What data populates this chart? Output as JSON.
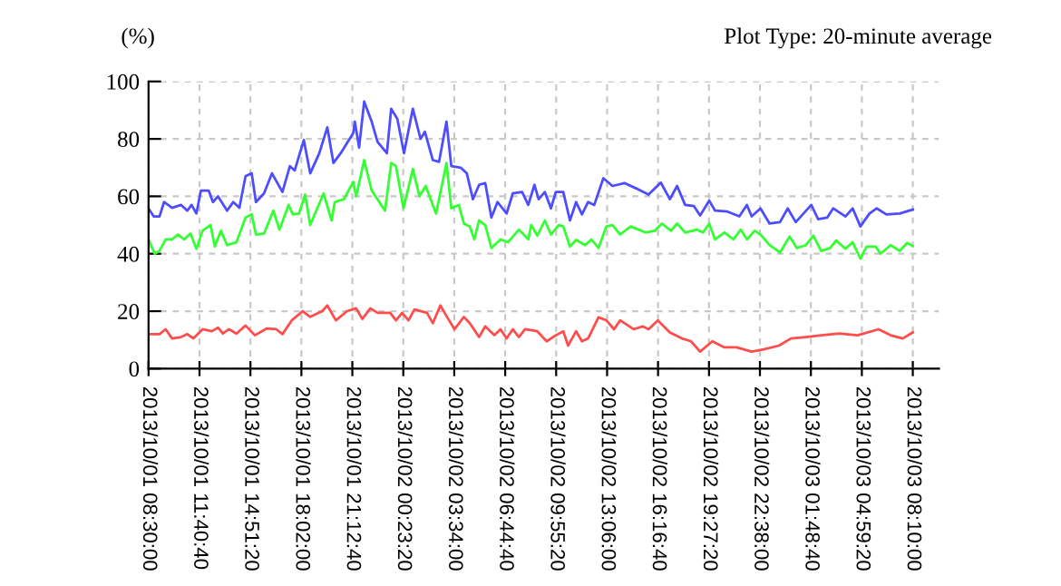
{
  "chart_data": {
    "type": "line",
    "title": "Plot Type: 20-minute average",
    "ylabel": "(%)",
    "xlim": [
      "2013-10-01T08:30",
      "2013-10-03T09:48"
    ],
    "ylim": [
      0,
      100
    ],
    "yticks": [
      0,
      20,
      40,
      60,
      80,
      100
    ],
    "xticks": [
      {
        "value": "2013-10-01T08:30:00",
        "label": "2013/10/01 08:30:00"
      },
      {
        "value": "2013-10-01T11:40:40",
        "label": "2013/10/01 11:40:40"
      },
      {
        "value": "2013-10-01T14:51:20",
        "label": "2013/10/01 14:51:20"
      },
      {
        "value": "2013-10-01T18:02:00",
        "label": "2013/10/01 18:02:00"
      },
      {
        "value": "2013-10-01T21:12:40",
        "label": "2013/10/01 21:12:40"
      },
      {
        "value": "2013-10-02T00:23:20",
        "label": "2013/10/02 00:23:20"
      },
      {
        "value": "2013-10-02T03:34:00",
        "label": "2013/10/02 03:34:00"
      },
      {
        "value": "2013-10-02T06:44:40",
        "label": "2013/10/02 06:44:40"
      },
      {
        "value": "2013-10-02T09:55:20",
        "label": "2013/10/02 09:55:20"
      },
      {
        "value": "2013-10-02T13:06:00",
        "label": "2013/10/02 13:06:00"
      },
      {
        "value": "2013-10-02T16:16:40",
        "label": "2013/10/02 16:16:40"
      },
      {
        "value": "2013-10-02T19:27:20",
        "label": "2013/10/02 19:27:20"
      },
      {
        "value": "2013-10-02T22:38:00",
        "label": "2013/10/02 22:38:00"
      },
      {
        "value": "2013-10-03T01:48:40",
        "label": "2013/10/03 01:48:40"
      },
      {
        "value": "2013-10-03T04:59:20",
        "label": "2013/10/03 04:59:20"
      },
      {
        "value": "2013-10-03T08:10:00",
        "label": "2013/10/03 08:10:00"
      }
    ],
    "grid": true,
    "marker": "none",
    "line_style": "solid",
    "series": [
      {
        "color": "#4d4dff",
        "x": [
          "2013-10-01T08:30",
          "2013-10-01T08:49",
          "2013-10-01T09:11",
          "2013-10-01T09:28",
          "2013-10-01T09:58",
          "2013-10-01T10:32",
          "2013-10-01T10:55",
          "2013-10-01T11:11",
          "2013-10-01T11:29",
          "2013-10-01T11:46",
          "2013-10-01T12:15",
          "2013-10-01T12:31",
          "2013-10-01T12:50",
          "2013-10-01T13:24",
          "2013-10-01T13:47",
          "2013-10-01T14:10",
          "2013-10-01T14:33",
          "2013-10-01T14:56",
          "2013-10-01T15:12",
          "2013-10-01T15:42",
          "2013-10-01T16:12",
          "2013-10-01T16:51",
          "2013-10-01T17:19",
          "2013-10-01T17:37",
          "2013-10-01T18:11",
          "2013-10-01T18:35",
          "2013-10-01T19:09",
          "2013-10-01T19:39",
          "2013-10-01T20:02",
          "2013-10-01T20:29",
          "2013-10-01T21:16",
          "2013-10-01T21:22",
          "2013-10-01T21:38",
          "2013-10-01T21:57",
          "2013-10-01T22:25",
          "2013-10-01T22:47",
          "2013-10-01T23:22",
          "2013-10-01T23:38",
          "2013-10-02T00:01",
          "2013-10-02T00:26",
          "2013-10-02T00:59",
          "2013-10-02T01:28",
          "2013-10-02T01:44",
          "2013-10-02T02:14",
          "2013-10-02T02:37",
          "2013-10-02T03:05",
          "2013-10-02T03:23",
          "2013-10-02T03:58",
          "2013-10-02T04:21",
          "2013-10-02T04:44",
          "2013-10-02T05:07",
          "2013-10-02T05:30",
          "2013-10-02T05:53",
          "2013-10-02T06:16",
          "2013-10-02T06:50",
          "2013-10-02T07:13",
          "2013-10-02T07:48",
          "2013-10-02T08:11",
          "2013-10-02T08:34",
          "2013-10-02T08:50",
          "2013-10-02T09:13",
          "2013-10-02T09:36",
          "2013-10-02T09:54",
          "2013-10-02T10:22",
          "2013-10-02T10:47",
          "2013-10-02T11:10",
          "2013-10-02T11:32",
          "2013-10-02T11:55",
          "2013-10-02T12:18",
          "2013-10-02T12:52",
          "2013-10-02T13:26",
          "2013-10-02T14:11",
          "2013-10-02T14:56",
          "2013-10-02T15:41",
          "2013-10-02T16:27",
          "2013-10-02T17:01",
          "2013-10-02T17:28",
          "2013-10-02T17:58",
          "2013-10-02T18:31",
          "2013-10-02T18:54",
          "2013-10-02T19:28",
          "2013-10-02T19:50",
          "2013-10-02T20:36",
          "2013-10-02T21:21",
          "2013-10-02T21:49",
          "2013-10-02T22:07",
          "2013-10-02T22:40",
          "2013-10-02T23:14",
          "2013-10-02T23:53",
          "2013-10-03T00:22",
          "2013-10-03T00:52",
          "2013-10-03T01:50",
          "2013-10-03T02:16",
          "2013-10-03T02:50",
          "2013-10-03T03:12",
          "2013-10-03T03:58",
          "2013-10-03T04:25",
          "2013-10-03T04:54",
          "2013-10-03T05:28",
          "2013-10-03T05:55",
          "2013-10-03T06:31",
          "2013-10-03T07:21",
          "2013-10-03T08:10"
        ],
        "values": [
          55.8,
          53,
          53,
          58,
          56,
          57,
          55,
          57,
          54,
          62,
          62,
          58,
          60,
          55,
          58,
          56,
          67,
          68,
          58,
          61,
          68,
          61.5,
          70.5,
          69,
          79.6,
          68,
          75,
          84,
          71.6,
          75,
          82,
          86,
          77,
          93,
          86,
          79,
          75,
          90.5,
          87,
          75,
          90.5,
          80,
          82.5,
          72.6,
          72,
          86,
          70.5,
          70,
          68,
          59,
          64,
          64.6,
          52.6,
          58,
          54,
          61,
          61.5,
          57,
          64,
          59,
          61.5,
          55.8,
          61.5,
          61.5,
          51.6,
          58,
          53.7,
          58,
          57,
          66.3,
          63.6,
          64.6,
          62.7,
          60.6,
          64.8,
          59,
          63.6,
          57,
          56.6,
          53.3,
          58.5,
          55,
          54.7,
          53,
          57,
          53,
          55.8,
          50.5,
          51,
          55.8,
          51,
          57,
          52,
          52.6,
          55.8,
          53,
          55.8,
          49.5,
          54,
          55.8,
          53.7,
          54,
          55.4
        ]
      },
      {
        "color": "#33ff33",
        "x": [
          "2013-10-01T08:30",
          "2013-10-01T08:53",
          "2013-10-01T09:11",
          "2013-10-01T09:34",
          "2013-10-01T09:58",
          "2013-10-01T10:20",
          "2013-10-01T10:43",
          "2013-10-01T11:07",
          "2013-10-01T11:29",
          "2013-10-01T11:52",
          "2013-10-01T12:22",
          "2013-10-01T12:38",
          "2013-10-01T13:01",
          "2013-10-01T13:24",
          "2013-10-01T13:59",
          "2013-10-01T14:33",
          "2013-10-01T14:56",
          "2013-10-01T15:12",
          "2013-10-01T15:42",
          "2013-10-01T16:17",
          "2013-10-01T16:40",
          "2013-10-01T17:14",
          "2013-10-01T17:30",
          "2013-10-01T17:53",
          "2013-10-01T18:16",
          "2013-10-01T18:35",
          "2013-10-01T19:25",
          "2013-10-01T19:55",
          "2013-10-01T20:07",
          "2013-10-01T20:41",
          "2013-10-01T21:16",
          "2013-10-01T21:27",
          "2013-10-01T21:57",
          "2013-10-01T22:25",
          "2013-10-01T23:15",
          "2013-10-01T23:38",
          "2013-10-01T23:56",
          "2013-10-02T00:24",
          "2013-10-02T00:59",
          "2013-10-02T01:24",
          "2013-10-02T01:47",
          "2013-10-02T02:26",
          "2013-10-02T03:05",
          "2013-10-02T03:23",
          "2013-10-02T03:51",
          "2013-10-02T04:10",
          "2013-10-02T04:32",
          "2013-10-02T04:49",
          "2013-10-02T05:07",
          "2013-10-02T05:30",
          "2013-10-02T05:53",
          "2013-10-02T06:27",
          "2013-10-02T06:55",
          "2013-10-02T07:36",
          "2013-10-02T08:11",
          "2013-10-02T08:22",
          "2013-10-02T08:45",
          "2013-10-02T09:13",
          "2013-10-02T09:36",
          "2013-10-02T10:05",
          "2013-10-02T10:22",
          "2013-10-02T10:47",
          "2013-10-02T11:10",
          "2013-10-02T11:44",
          "2013-10-02T12:07",
          "2013-10-02T12:34",
          "2013-10-02T13:03",
          "2013-10-02T13:26",
          "2013-10-02T13:55",
          "2013-10-02T14:34",
          "2013-10-02T15:30",
          "2013-10-02T16:04",
          "2013-10-02T16:31",
          "2013-10-02T17:05",
          "2013-10-02T17:28",
          "2013-10-02T17:58",
          "2013-10-02T18:43",
          "2013-10-02T19:05",
          "2013-10-02T19:28",
          "2013-10-02T19:50",
          "2013-10-02T20:25",
          "2013-10-02T20:59",
          "2013-10-02T21:26",
          "2013-10-02T21:50",
          "2013-10-02T22:18",
          "2013-10-02T22:40",
          "2013-10-02T23:14",
          "2013-10-02T23:53",
          "2013-10-03T00:29",
          "2013-10-03T00:56",
          "2013-10-03T01:30",
          "2013-10-03T01:58",
          "2013-10-03T02:27",
          "2013-10-03T03:01",
          "2013-10-03T03:23",
          "2013-10-03T03:58",
          "2013-10-03T04:25",
          "2013-10-03T04:54",
          "2013-10-03T05:17",
          "2013-10-03T05:51",
          "2013-10-03T06:09",
          "2013-10-03T06:47",
          "2013-10-03T07:21",
          "2013-10-03T07:49",
          "2013-10-03T08:10"
        ],
        "values": [
          45,
          40,
          41,
          45,
          45,
          46.7,
          45,
          47,
          41.7,
          48,
          50,
          42.5,
          48,
          43,
          44,
          52.6,
          53.7,
          46.7,
          47,
          55,
          48.4,
          57,
          53.7,
          54,
          60.6,
          50,
          61,
          51.6,
          58,
          59,
          65,
          60,
          72.6,
          62,
          55,
          71.6,
          70.5,
          55.8,
          69.5,
          60,
          63.6,
          54,
          71.6,
          55.8,
          57,
          50.5,
          49.5,
          45,
          51.6,
          50,
          42,
          45,
          44,
          48.4,
          45,
          50,
          46.3,
          51.6,
          46.7,
          50,
          49.5,
          42.5,
          44.8,
          43,
          45,
          42,
          49.5,
          50,
          46.7,
          49.5,
          47.4,
          48,
          50.5,
          48,
          50.5,
          47.4,
          48.4,
          47.4,
          50.5,
          45,
          47.4,
          45,
          48.4,
          45,
          48,
          46.7,
          43,
          40.4,
          46,
          42,
          43,
          46.3,
          41,
          42,
          44.6,
          41.7,
          44,
          38.3,
          42.5,
          42.5,
          40,
          43,
          41,
          43.8,
          42.7
        ]
      },
      {
        "color": "#ff4d4d",
        "x": [
          "2013-10-01T08:30",
          "2013-10-01T09:11",
          "2013-10-01T09:34",
          "2013-10-01T09:58",
          "2013-10-01T10:32",
          "2013-10-01T10:55",
          "2013-10-01T11:18",
          "2013-10-01T11:52",
          "2013-10-01T12:27",
          "2013-10-01T12:50",
          "2013-10-01T13:08",
          "2013-10-01T13:31",
          "2013-10-01T13:59",
          "2013-10-01T14:33",
          "2013-10-01T15:08",
          "2013-10-01T15:53",
          "2013-10-01T16:28",
          "2013-10-01T16:51",
          "2013-10-01T17:26",
          "2013-10-01T18:07",
          "2013-10-01T18:35",
          "2013-10-01T19:20",
          "2013-10-01T19:39",
          "2013-10-01T20:11",
          "2013-10-01T20:53",
          "2013-10-01T21:27",
          "2013-10-01T21:50",
          "2013-10-01T22:20",
          "2013-10-01T22:47",
          "2013-10-01T23:34",
          "2013-10-01T23:56",
          "2013-10-02T00:19",
          "2013-10-02T00:43",
          "2013-10-02T01:05",
          "2013-10-02T01:52",
          "2013-10-02T02:14",
          "2013-10-02T02:42",
          "2013-10-02T03:05",
          "2013-10-02T03:35",
          "2013-10-02T04:10",
          "2013-10-02T04:32",
          "2013-10-02T05:07",
          "2013-10-02T05:30",
          "2013-10-02T06:04",
          "2013-10-02T06:27",
          "2013-10-02T06:50",
          "2013-10-02T07:13",
          "2013-10-02T07:36",
          "2013-10-02T07:59",
          "2013-10-02T08:45",
          "2013-10-02T09:20",
          "2013-10-02T09:54",
          "2013-10-02T10:22",
          "2013-10-02T10:40",
          "2013-10-02T11:10",
          "2013-10-02T11:32",
          "2013-10-02T11:55",
          "2013-10-02T12:34",
          "2013-10-02T13:03",
          "2013-10-02T13:32",
          "2013-10-02T13:55",
          "2013-10-02T14:45",
          "2013-10-02T15:19",
          "2013-10-02T15:41",
          "2013-10-02T16:16",
          "2013-10-02T17:01",
          "2013-10-02T17:46",
          "2013-10-02T18:20",
          "2013-10-02T18:54",
          "2013-10-02T19:40",
          "2013-10-02T20:25",
          "2013-10-02T21:10",
          "2013-10-02T22:07",
          "2013-10-02T22:52",
          "2013-10-02T23:49",
          "2013-10-03T00:34",
          "2013-10-03T01:30",
          "2013-10-03T02:27",
          "2013-10-03T03:35",
          "2013-10-03T04:43",
          "2013-10-03T06:02",
          "2013-10-03T06:47",
          "2013-10-03T07:32",
          "2013-10-03T08:10"
        ],
        "values": [
          12,
          12,
          13.7,
          10.5,
          11,
          12,
          10.5,
          13.7,
          13,
          14.3,
          12.2,
          13.7,
          12.2,
          15,
          11.6,
          14,
          13.7,
          12,
          16.8,
          20,
          18,
          20,
          22,
          16.8,
          20,
          21,
          17.3,
          21,
          19.4,
          19.4,
          16.8,
          19.4,
          16.8,
          20.6,
          19.4,
          15.8,
          22,
          18.3,
          13.7,
          18,
          15.8,
          11,
          14.7,
          11.6,
          13.7,
          10.5,
          13.7,
          11,
          13.7,
          13,
          9.5,
          11.6,
          13,
          8,
          13,
          9.5,
          10.5,
          17.9,
          16.8,
          13.7,
          16.8,
          13.7,
          14.7,
          13.7,
          16.8,
          12.6,
          10.5,
          9.5,
          5.9,
          9.5,
          7.4,
          7.4,
          5.9,
          6.7,
          8,
          10.5,
          11,
          11.6,
          12.2,
          11.6,
          13.7,
          11.6,
          10.5,
          12.6
        ]
      }
    ]
  }
}
